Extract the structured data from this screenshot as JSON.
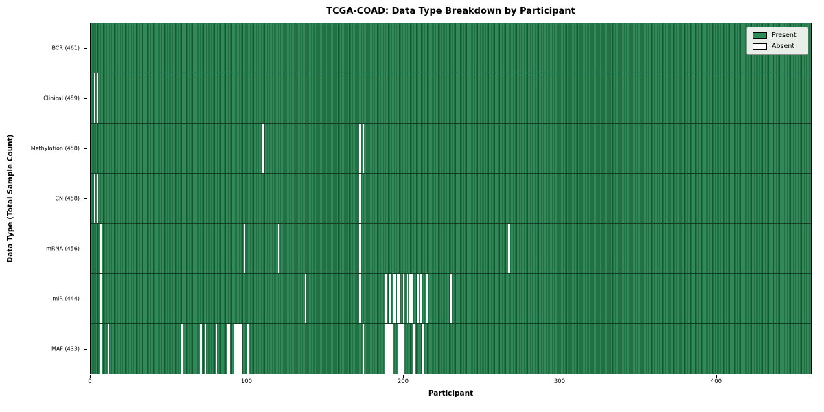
{
  "chart_data": {
    "type": "heatmap",
    "title": "TCGA-COAD: Data Type Breakdown by Participant",
    "xlabel": "Participant",
    "ylabel": "Data Type (Total Sample Count)",
    "n_participants": 461,
    "n_rows": 7,
    "x_ticks": [
      0,
      100,
      200,
      300,
      400
    ],
    "legend_position": "upper right",
    "grid": false,
    "colors": {
      "present": "#2e8b57",
      "absent": "#ffffff",
      "cell_edge": "#143d27",
      "plot_border": "#000000",
      "legend_bg": "#e9eee9"
    },
    "legend": [
      {
        "label": "Present",
        "color": "#2e8b57"
      },
      {
        "label": "Absent",
        "color": "#ffffff"
      }
    ],
    "rows": [
      {
        "label": "BCR (461)",
        "data_type": "BCR",
        "present_count": 461,
        "absent_participants": []
      },
      {
        "label": "Clinical (459)",
        "data_type": "Clinical",
        "present_count": 459,
        "absent_participants": [
          2,
          4
        ]
      },
      {
        "label": "Methylation (458)",
        "data_type": "Methylation",
        "present_count": 458,
        "absent_participants": [
          110,
          172,
          174
        ]
      },
      {
        "label": "CN (458)",
        "data_type": "CN",
        "present_count": 458,
        "absent_participants": [
          2,
          4,
          172
        ]
      },
      {
        "label": "mRNA (456)",
        "data_type": "mRNA",
        "present_count": 456,
        "absent_participants": [
          6,
          98,
          120,
          172,
          267
        ]
      },
      {
        "label": "miR (444)",
        "data_type": "miR",
        "present_count": 444,
        "absent_participants": [
          6,
          137,
          172,
          188,
          189,
          191,
          194,
          196,
          197,
          200,
          202,
          204,
          205,
          209,
          211,
          215,
          230
        ]
      },
      {
        "label": "MAF (433)",
        "data_type": "MAF",
        "present_count": 433,
        "absent_participants": [
          6,
          11,
          58,
          70,
          73,
          80,
          87,
          88,
          92,
          93,
          94,
          95,
          96,
          100,
          174,
          188,
          189,
          190,
          191,
          192,
          193,
          197,
          198,
          199,
          200,
          206,
          207,
          212
        ]
      }
    ]
  }
}
